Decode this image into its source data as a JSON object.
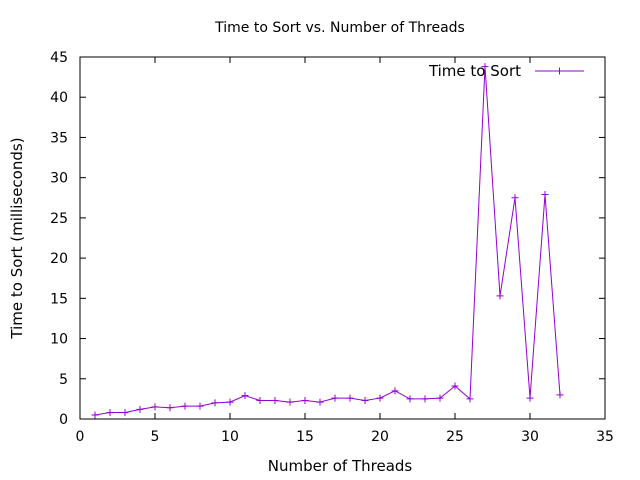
{
  "chart_data": {
    "type": "line",
    "title": "Time to Sort vs. Number of Threads",
    "xlabel": "Number of Threads",
    "ylabel": "Time to Sort (milliseconds)",
    "xlim": [
      0,
      35
    ],
    "ylim": [
      0,
      45
    ],
    "xticks": [
      0,
      5,
      10,
      15,
      20,
      25,
      30,
      35
    ],
    "yticks": [
      0,
      5,
      10,
      15,
      20,
      25,
      30,
      35,
      40,
      45
    ],
    "grid": false,
    "legend_position": "top-right",
    "series": [
      {
        "name": "Time to Sort",
        "color": "#9400d3",
        "marker": "plus",
        "x": [
          1,
          2,
          3,
          4,
          5,
          6,
          7,
          8,
          9,
          10,
          11,
          12,
          13,
          14,
          15,
          16,
          17,
          18,
          19,
          20,
          21,
          22,
          23,
          24,
          25,
          26,
          27,
          28,
          29,
          30,
          31,
          32
        ],
        "values": [
          0.5,
          0.8,
          0.8,
          1.2,
          1.5,
          1.4,
          1.6,
          1.6,
          2.0,
          2.1,
          2.9,
          2.3,
          2.3,
          2.1,
          2.3,
          2.1,
          2.6,
          2.6,
          2.3,
          2.6,
          3.5,
          2.5,
          2.5,
          2.6,
          4.1,
          2.5,
          43.8,
          15.3,
          27.5,
          2.6,
          27.9,
          3.0
        ]
      }
    ]
  }
}
